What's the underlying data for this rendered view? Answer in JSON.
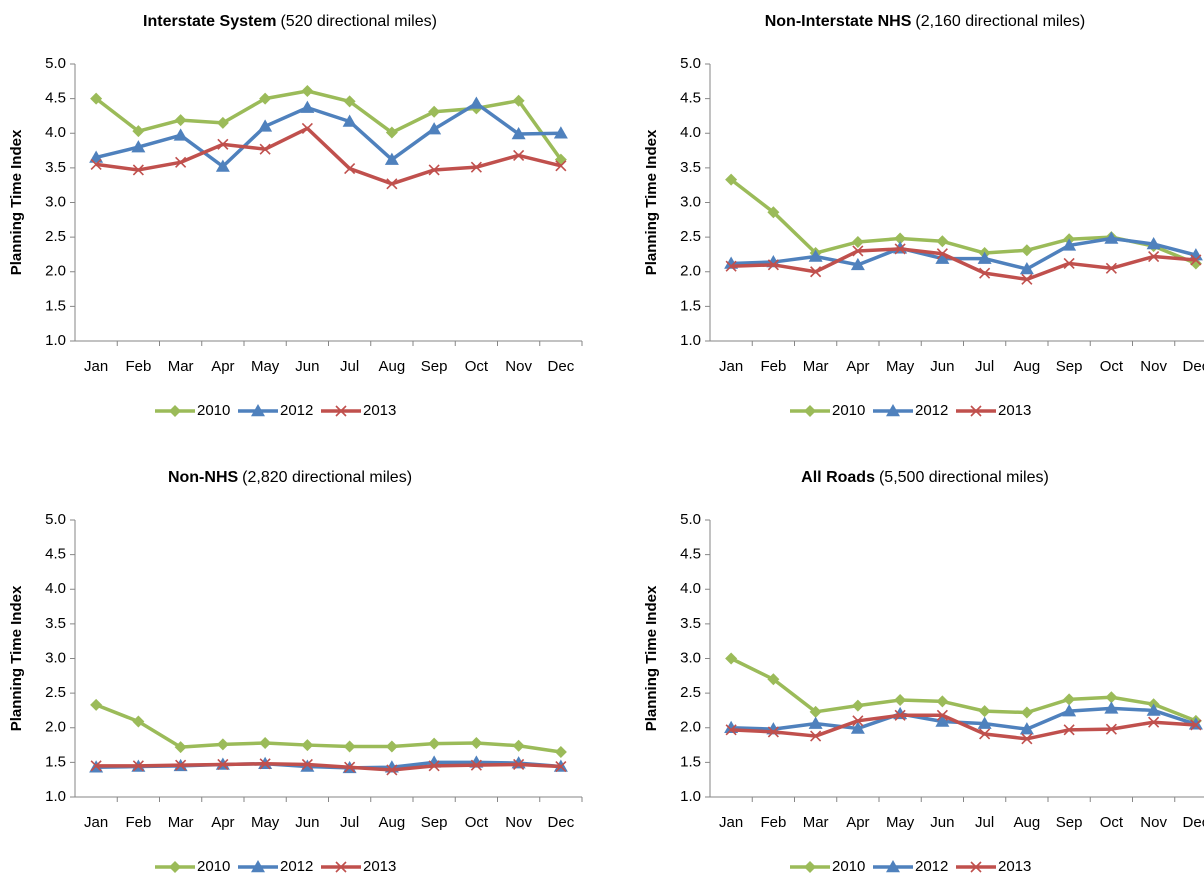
{
  "chart_data": [
    {
      "type": "line",
      "title": "Interstate System",
      "subtitle": "(520 directional miles)",
      "y_label": "Planning Time Index",
      "categories": [
        "Jan",
        "Feb",
        "Mar",
        "Apr",
        "May",
        "Jun",
        "Jul",
        "Aug",
        "Sep",
        "Oct",
        "Nov",
        "Dec"
      ],
      "ylim": [
        1,
        5
      ],
      "yticks": [
        {
          "value": 1,
          "label": "1.0"
        },
        {
          "value": 1.5,
          "label": "1.5"
        },
        {
          "value": 2,
          "label": "2.0"
        },
        {
          "value": 2.5,
          "label": "2.5"
        },
        {
          "value": 3,
          "label": "3.0"
        },
        {
          "value": 3.5,
          "label": "3.5"
        },
        {
          "value": 4,
          "label": "4.0"
        },
        {
          "value": 4.5,
          "label": "4.5"
        },
        {
          "value": 5,
          "label": "5.0"
        }
      ],
      "grid": false,
      "legend": "bottom",
      "series": [
        {
          "name": "2010",
          "color": "#9bbb59",
          "marker": "diamond",
          "values": [
            4.5,
            4.03,
            4.19,
            4.15,
            4.5,
            4.61,
            4.46,
            4.01,
            4.31,
            4.36,
            4.47,
            3.62
          ]
        },
        {
          "name": "2012",
          "color": "#4f81bd",
          "marker": "triangle",
          "values": [
            3.65,
            3.8,
            3.97,
            3.52,
            4.1,
            4.37,
            4.17,
            3.62,
            4.06,
            4.43,
            3.99,
            4.0
          ]
        },
        {
          "name": "2013",
          "color": "#c0504d",
          "marker": "x",
          "values": [
            3.55,
            3.47,
            3.58,
            3.84,
            3.77,
            4.07,
            3.49,
            3.27,
            3.47,
            3.51,
            3.68,
            3.53
          ]
        }
      ]
    },
    {
      "type": "line",
      "title": "Non-Interstate NHS",
      "subtitle": "(2,160 directional miles)",
      "y_label": "Planning Time Index",
      "categories": [
        "Jan",
        "Feb",
        "Mar",
        "Apr",
        "May",
        "Jun",
        "Jul",
        "Aug",
        "Sep",
        "Oct",
        "Nov",
        "Dec"
      ],
      "ylim": [
        1,
        5
      ],
      "yticks": [
        {
          "value": 1,
          "label": "1.0"
        },
        {
          "value": 1.5,
          "label": "1.5"
        },
        {
          "value": 2,
          "label": "2.0"
        },
        {
          "value": 2.5,
          "label": "2.5"
        },
        {
          "value": 3,
          "label": "3.0"
        },
        {
          "value": 3.5,
          "label": "3.5"
        },
        {
          "value": 4,
          "label": "4.0"
        },
        {
          "value": 4.5,
          "label": "4.5"
        },
        {
          "value": 5,
          "label": "5.0"
        }
      ],
      "grid": false,
      "legend": "bottom",
      "series": [
        {
          "name": "2010",
          "color": "#9bbb59",
          "marker": "diamond",
          "values": [
            3.33,
            2.86,
            2.27,
            2.43,
            2.48,
            2.44,
            2.27,
            2.31,
            2.47,
            2.5,
            2.37,
            2.12
          ]
        },
        {
          "name": "2012",
          "color": "#4f81bd",
          "marker": "triangle",
          "values": [
            2.12,
            2.14,
            2.22,
            2.1,
            2.34,
            2.19,
            2.19,
            2.04,
            2.38,
            2.48,
            2.4,
            2.24
          ]
        },
        {
          "name": "2013",
          "color": "#c0504d",
          "marker": "x",
          "values": [
            2.08,
            2.1,
            2.0,
            2.3,
            2.33,
            2.26,
            1.98,
            1.89,
            2.12,
            2.05,
            2.22,
            2.17
          ]
        }
      ]
    },
    {
      "type": "line",
      "title": "Non-NHS",
      "subtitle": "(2,820 directional miles)",
      "y_label": "Planning Time Index",
      "categories": [
        "Jan",
        "Feb",
        "Mar",
        "Apr",
        "May",
        "Jun",
        "Jul",
        "Aug",
        "Sep",
        "Oct",
        "Nov",
        "Dec"
      ],
      "ylim": [
        1,
        5
      ],
      "yticks": [
        {
          "value": 1,
          "label": "1.0"
        },
        {
          "value": 1.5,
          "label": "1.5"
        },
        {
          "value": 2,
          "label": "2.0"
        },
        {
          "value": 2.5,
          "label": "2.5"
        },
        {
          "value": 3,
          "label": "3.0"
        },
        {
          "value": 3.5,
          "label": "3.5"
        },
        {
          "value": 4,
          "label": "4.0"
        },
        {
          "value": 4.5,
          "label": "4.5"
        },
        {
          "value": 5,
          "label": "5.0"
        }
      ],
      "grid": false,
      "legend": "bottom",
      "series": [
        {
          "name": "2010",
          "color": "#9bbb59",
          "marker": "diamond",
          "values": [
            2.33,
            2.09,
            1.72,
            1.76,
            1.78,
            1.75,
            1.73,
            1.73,
            1.77,
            1.78,
            1.74,
            1.65
          ]
        },
        {
          "name": "2012",
          "color": "#4f81bd",
          "marker": "triangle",
          "values": [
            1.43,
            1.44,
            1.45,
            1.47,
            1.48,
            1.44,
            1.42,
            1.43,
            1.5,
            1.5,
            1.49,
            1.44
          ]
        },
        {
          "name": "2013",
          "color": "#c0504d",
          "marker": "x",
          "values": [
            1.45,
            1.45,
            1.46,
            1.47,
            1.48,
            1.47,
            1.43,
            1.39,
            1.45,
            1.46,
            1.47,
            1.44
          ]
        }
      ]
    },
    {
      "type": "line",
      "title": "All Roads",
      "subtitle": "(5,500 directional miles)",
      "y_label": "Planning Time Index",
      "categories": [
        "Jan",
        "Feb",
        "Mar",
        "Apr",
        "May",
        "Jun",
        "Jul",
        "Aug",
        "Sep",
        "Oct",
        "Nov",
        "Dec"
      ],
      "ylim": [
        1,
        5
      ],
      "yticks": [
        {
          "value": 1,
          "label": "1.0"
        },
        {
          "value": 1.5,
          "label": "1.5"
        },
        {
          "value": 2,
          "label": "2.0"
        },
        {
          "value": 2.5,
          "label": "2.5"
        },
        {
          "value": 3,
          "label": "3.0"
        },
        {
          "value": 3.5,
          "label": "3.5"
        },
        {
          "value": 4,
          "label": "4.0"
        },
        {
          "value": 4.5,
          "label": "4.5"
        },
        {
          "value": 5,
          "label": "5.0"
        }
      ],
      "grid": false,
      "legend": "bottom",
      "series": [
        {
          "name": "2010",
          "color": "#9bbb59",
          "marker": "diamond",
          "values": [
            3.0,
            2.7,
            2.23,
            2.32,
            2.4,
            2.38,
            2.24,
            2.22,
            2.41,
            2.44,
            2.34,
            2.1
          ]
        },
        {
          "name": "2012",
          "color": "#4f81bd",
          "marker": "triangle",
          "values": [
            2.0,
            1.98,
            2.06,
            1.99,
            2.2,
            2.09,
            2.06,
            1.98,
            2.24,
            2.28,
            2.25,
            2.05
          ]
        },
        {
          "name": "2013",
          "color": "#c0504d",
          "marker": "x",
          "values": [
            1.97,
            1.94,
            1.88,
            2.1,
            2.18,
            2.18,
            1.91,
            1.84,
            1.97,
            1.98,
            2.08,
            2.04
          ]
        }
      ]
    }
  ]
}
